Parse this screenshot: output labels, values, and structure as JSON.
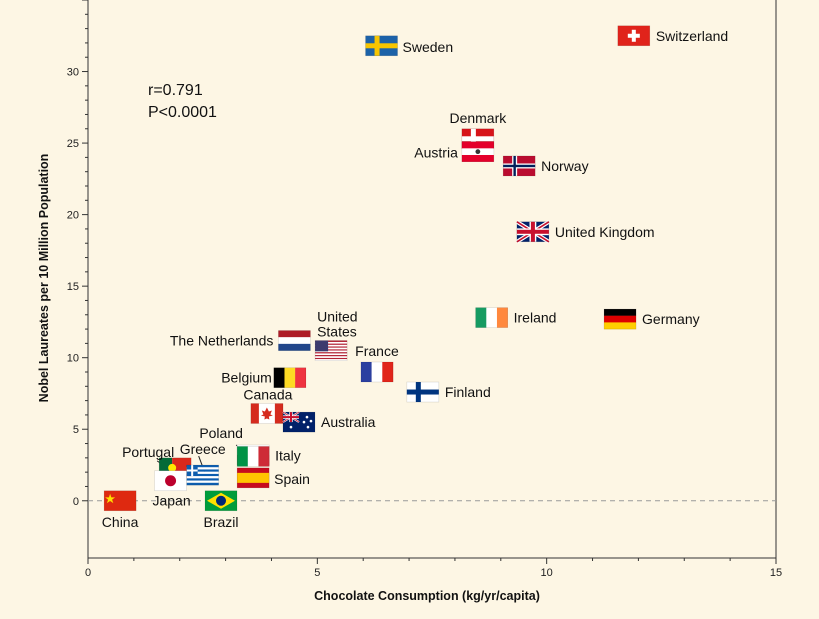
{
  "chart_data": {
    "type": "scatter",
    "title": "",
    "xlabel": "Chocolate Consumption (kg/yr/capita)",
    "ylabel": "Nobel Laureates per 10 Million Population",
    "xlim": [
      0,
      15
    ],
    "ylim": [
      -4,
      35
    ],
    "x_ticks": [
      0,
      5,
      10,
      15
    ],
    "y_ticks": [
      0,
      5,
      10,
      15,
      20,
      25,
      30
    ],
    "grid": false,
    "reference_line": {
      "y": 0,
      "style": "dashed"
    },
    "annotations": [
      "r=0.791",
      "P<0.0001"
    ],
    "points": [
      {
        "country": "Switzerland",
        "x": 11.9,
        "y": 32.5,
        "flag": "switzerland-flag"
      },
      {
        "country": "Sweden",
        "x": 6.4,
        "y": 31.8,
        "flag": "sweden-flag"
      },
      {
        "country": "Denmark",
        "x": 8.5,
        "y": 25.3,
        "flag": "denmark-flag"
      },
      {
        "country": "Austria",
        "x": 8.5,
        "y": 24.4,
        "flag": "austria-flag"
      },
      {
        "country": "Norway",
        "x": 9.4,
        "y": 23.4,
        "flag": "norway-flag"
      },
      {
        "country": "United Kingdom",
        "x": 9.7,
        "y": 18.8,
        "flag": "united-kingdom-flag"
      },
      {
        "country": "Ireland",
        "x": 8.8,
        "y": 12.8,
        "flag": "ireland-flag"
      },
      {
        "country": "Germany",
        "x": 11.6,
        "y": 12.7,
        "flag": "germany-flag"
      },
      {
        "country": "The Netherlands",
        "x": 4.5,
        "y": 11.2,
        "flag": "netherlands-flag"
      },
      {
        "country": "United States",
        "x": 5.3,
        "y": 10.5,
        "flag": "united-states-flag"
      },
      {
        "country": "France",
        "x": 6.3,
        "y": 9.0,
        "flag": "france-flag"
      },
      {
        "country": "Belgium",
        "x": 4.4,
        "y": 8.6,
        "flag": "belgium-flag"
      },
      {
        "country": "Finland",
        "x": 7.3,
        "y": 7.6,
        "flag": "finland-flag"
      },
      {
        "country": "Canada",
        "x": 3.9,
        "y": 6.1,
        "flag": "canada-flag"
      },
      {
        "country": "Australia",
        "x": 4.6,
        "y": 5.5,
        "flag": "australia-flag"
      },
      {
        "country": "Poland",
        "x": 3.6,
        "y": 3.2,
        "flag": "poland-flag"
      },
      {
        "country": "Italy",
        "x": 3.6,
        "y": 3.1,
        "flag": "italy-flag"
      },
      {
        "country": "Portugal",
        "x": 1.9,
        "y": 2.3,
        "flag": "portugal-flag"
      },
      {
        "country": "Greece",
        "x": 2.5,
        "y": 1.8,
        "flag": "greece-flag"
      },
      {
        "country": "Spain",
        "x": 3.6,
        "y": 1.6,
        "flag": "spain-flag"
      },
      {
        "country": "Japan",
        "x": 1.8,
        "y": 1.4,
        "flag": "japan-flag"
      },
      {
        "country": "Brazil",
        "x": 2.9,
        "y": 0.0,
        "flag": "brazil-flag"
      },
      {
        "country": "China",
        "x": 0.7,
        "y": 0.0,
        "flag": "china-flag"
      }
    ]
  }
}
